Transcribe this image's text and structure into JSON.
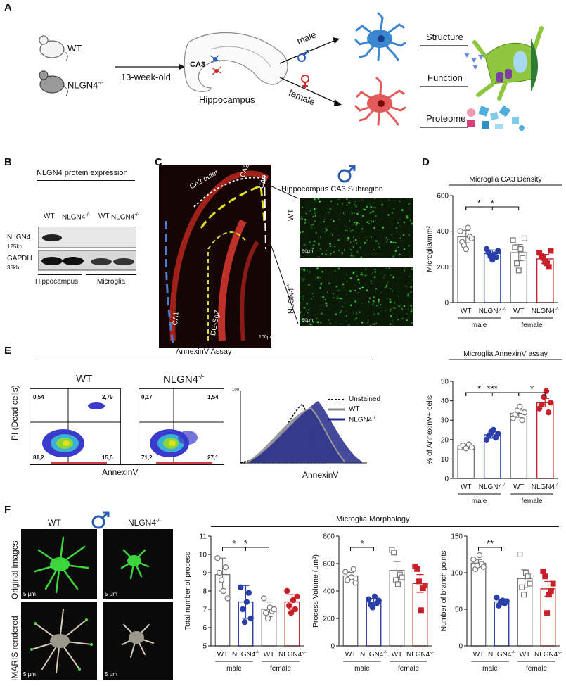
{
  "panelA": {
    "label": "A",
    "wt": "WT",
    "ko": "NLGN4",
    "ko_sup": "-/-",
    "age": "13-week-old",
    "ca3": "CA3",
    "hippocampus": "Hippocampus",
    "male": "male",
    "female": "female",
    "structure": "Structure",
    "function": "Function",
    "proteome": "Proteome"
  },
  "panelB": {
    "label": "B",
    "title": "NLGN4 protein expression",
    "lanes": [
      "WT",
      "NLGN4",
      "WT",
      "NLGN4"
    ],
    "ko_sup": "-/-",
    "nlgn4": "NLGN4",
    "nlgn4_kb": "125kb",
    "gapdh": "GAPDH",
    "gapdh_kb": "35kb",
    "hippocampus": "Hippocampus",
    "microglia": "Microglia"
  },
  "panelC": {
    "label": "C",
    "regions": [
      "CA2 outer",
      "CA2",
      "CA3",
      "CA1",
      "DG-SgZ"
    ],
    "scale": "100µm",
    "subregion": "Hippocampus CA3 Subregion",
    "wt": "WT",
    "ko": "NLGN4",
    "ko_sup": "-/-",
    "scale_small": "50µm"
  },
  "panelE": {
    "label": "E",
    "title": "AnnexinV Assay",
    "wt": "WT",
    "ko": "NLGN4",
    "ko_sup": "-/-",
    "ylabel": "PI (Dead cells)",
    "xlabel": "AnnexinV",
    "wt_quadrants": [
      "0,54",
      "2,79",
      "81,2",
      "15,5"
    ],
    "ko_quadrants": [
      "0,17",
      "1,54",
      "71,2",
      "27,1"
    ],
    "hist_legend": [
      "Unstained",
      "WT",
      "NLGN4"
    ],
    "hist_xlabel": "AnnexinV",
    "hist_ymax": "100"
  },
  "panelF": {
    "label": "F",
    "wt": "WT",
    "ko": "NLGN4",
    "ko_sup": "-/-",
    "row1": "Original images",
    "row2": "IMARIS rendered",
    "scale": "5 µm",
    "morph_title": "Microglia Morphology"
  },
  "groups": {
    "male": "male",
    "female": "female",
    "cat_wt": "WT",
    "cat_ko": "NLGN4",
    "ko_sup": "-/-"
  },
  "colors": {
    "wt_male": "#777777",
    "ko_male": "#2a3ea8",
    "wt_female": "#777777",
    "ko_female": "#c8202a",
    "male_icon": "#2a5db0",
    "female_icon": "#d0302a"
  },
  "chart_data": [
    {
      "id": "D",
      "label": "D",
      "type": "bar",
      "title": "Microglia CA3 Density",
      "ylabel": "Microglia/mm²",
      "categories": [
        "WT",
        "NLGN4-/-",
        "WT",
        "NLGN4-/-"
      ],
      "groups": [
        "male",
        "female"
      ],
      "values": [
        370,
        275,
        280,
        245
      ],
      "errors": [
        35,
        20,
        45,
        25
      ],
      "points": [
        [
          400,
          340,
          320,
          300,
          420,
          370,
          360
        ],
        [
          300,
          280,
          260,
          240,
          270,
          255,
          290
        ],
        [
          350,
          310,
          220,
          180,
          300,
          250,
          360
        ],
        [
          280,
          260,
          250,
          230,
          220,
          200,
          290
        ]
      ],
      "ylim": [
        0,
        600
      ],
      "yticks": [
        0,
        200,
        400,
        600
      ],
      "significance": [
        {
          "from": 0,
          "to": 1,
          "text": "*"
        },
        {
          "from": 0,
          "to": 2,
          "text": "*"
        }
      ]
    },
    {
      "id": "E2",
      "label": "",
      "type": "bar",
      "title": "Microglia AnnexinV assay",
      "ylabel": "% of AnnexinV+ cells",
      "categories": [
        "WT",
        "NLGN4-/-",
        "WT",
        "NLGN4-/-"
      ],
      "groups": [
        "male",
        "female"
      ],
      "values": [
        16.5,
        22.5,
        33.5,
        39
      ],
      "errors": [
        1,
        1.8,
        2,
        2.2
      ],
      "points": [
        [
          16,
          17,
          15.5,
          17.5,
          16
        ],
        [
          20,
          22,
          24,
          25,
          21,
          23
        ],
        [
          31,
          33,
          35,
          37,
          30,
          34
        ],
        [
          36,
          38,
          42,
          45,
          34,
          39
        ]
      ],
      "ylim": [
        0,
        50
      ],
      "yticks": [
        0,
        10,
        20,
        30,
        40,
        50
      ],
      "significance": [
        {
          "from": 0,
          "to": 1,
          "text": "*"
        },
        {
          "from": 0,
          "to": 2,
          "text": "***"
        },
        {
          "from": 2,
          "to": 3,
          "text": "*"
        }
      ]
    },
    {
      "id": "F1",
      "label": "",
      "type": "bar",
      "title": "",
      "ylabel": "Total number of process",
      "categories": [
        "WT",
        "NLGN4-/-",
        "WT",
        "NLGN4-/-"
      ],
      "groups": [
        "male",
        "female"
      ],
      "values": [
        8.9,
        7.4,
        7.0,
        7.4
      ],
      "errors": [
        0.9,
        0.9,
        0.4,
        0.4
      ],
      "points": [
        [
          9.8,
          9.0,
          8.6,
          8.0,
          9.3,
          7.6
        ],
        [
          8.2,
          7.0,
          6.3,
          7.4,
          7.9,
          6.5
        ],
        [
          7.6,
          6.8,
          6.5,
          7.1,
          6.9,
          7.0
        ],
        [
          8.0,
          7.2,
          6.8,
          7.5,
          7.0,
          7.7
        ]
      ],
      "ylim": [
        5,
        11
      ],
      "yticks": [
        5,
        6,
        7,
        8,
        9,
        10,
        11
      ],
      "significance": [
        {
          "from": 0,
          "to": 1,
          "text": "*"
        },
        {
          "from": 0,
          "to": 2,
          "text": "*"
        }
      ]
    },
    {
      "id": "F2",
      "label": "",
      "type": "bar",
      "title": "",
      "ylabel": "Process Volume (µm³)",
      "categories": [
        "WT",
        "NLGN4-/-",
        "WT",
        "NLGN4-/-"
      ],
      "groups": [
        "male",
        "female"
      ],
      "values": [
        510,
        320,
        550,
        455
      ],
      "errors": [
        25,
        25,
        65,
        65
      ],
      "points": [
        [
          540,
          480,
          520,
          500,
          560,
          460
        ],
        [
          340,
          300,
          280,
          360,
          310,
          330
        ],
        [
          700,
          680,
          480,
          450,
          520,
          500
        ],
        [
          580,
          560,
          470,
          260,
          420,
          440
        ]
      ],
      "ylim": [
        0,
        800
      ],
      "yticks": [
        0,
        200,
        400,
        600,
        800
      ],
      "significance": [
        {
          "from": 0,
          "to": 1,
          "text": "*"
        }
      ]
    },
    {
      "id": "F3",
      "label": "",
      "type": "bar",
      "title": "",
      "ylabel": "Number of branch points",
      "categories": [
        "WT",
        "NLGN4-/-",
        "WT",
        "NLGN4-/-"
      ],
      "groups": [
        "male",
        "female"
      ],
      "values": [
        113,
        60,
        92,
        78
      ],
      "errors": [
        5,
        4,
        12,
        10
      ],
      "points": [
        [
          118,
          105,
          110,
          124,
          112,
          108
        ],
        [
          66,
          55,
          60,
          62,
          58,
          61
        ],
        [
          125,
          80,
          70,
          100,
          95,
          85
        ],
        [
          102,
          95,
          45,
          70,
          75,
          85
        ]
      ],
      "ylim": [
        0,
        150
      ],
      "yticks": [
        0,
        50,
        100,
        150
      ],
      "significance": [
        {
          "from": 0,
          "to": 1,
          "text": "**"
        }
      ]
    }
  ]
}
